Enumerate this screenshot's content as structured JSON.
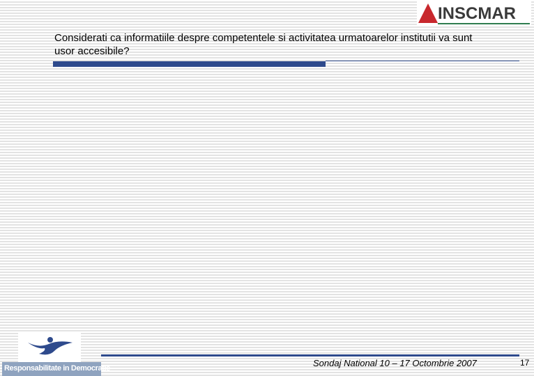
{
  "header": {
    "title": "Considerati ca  informatiile despre competentele si activitatea urmatoarelor institutii va sunt usor accesibile?",
    "logo": "INSCMAR"
  },
  "footer": {
    "logo_caption": "Responsabilitate in Democratie",
    "survey": "Sondaj National 10 – 17 Octombrie 2007",
    "page": "17"
  }
}
